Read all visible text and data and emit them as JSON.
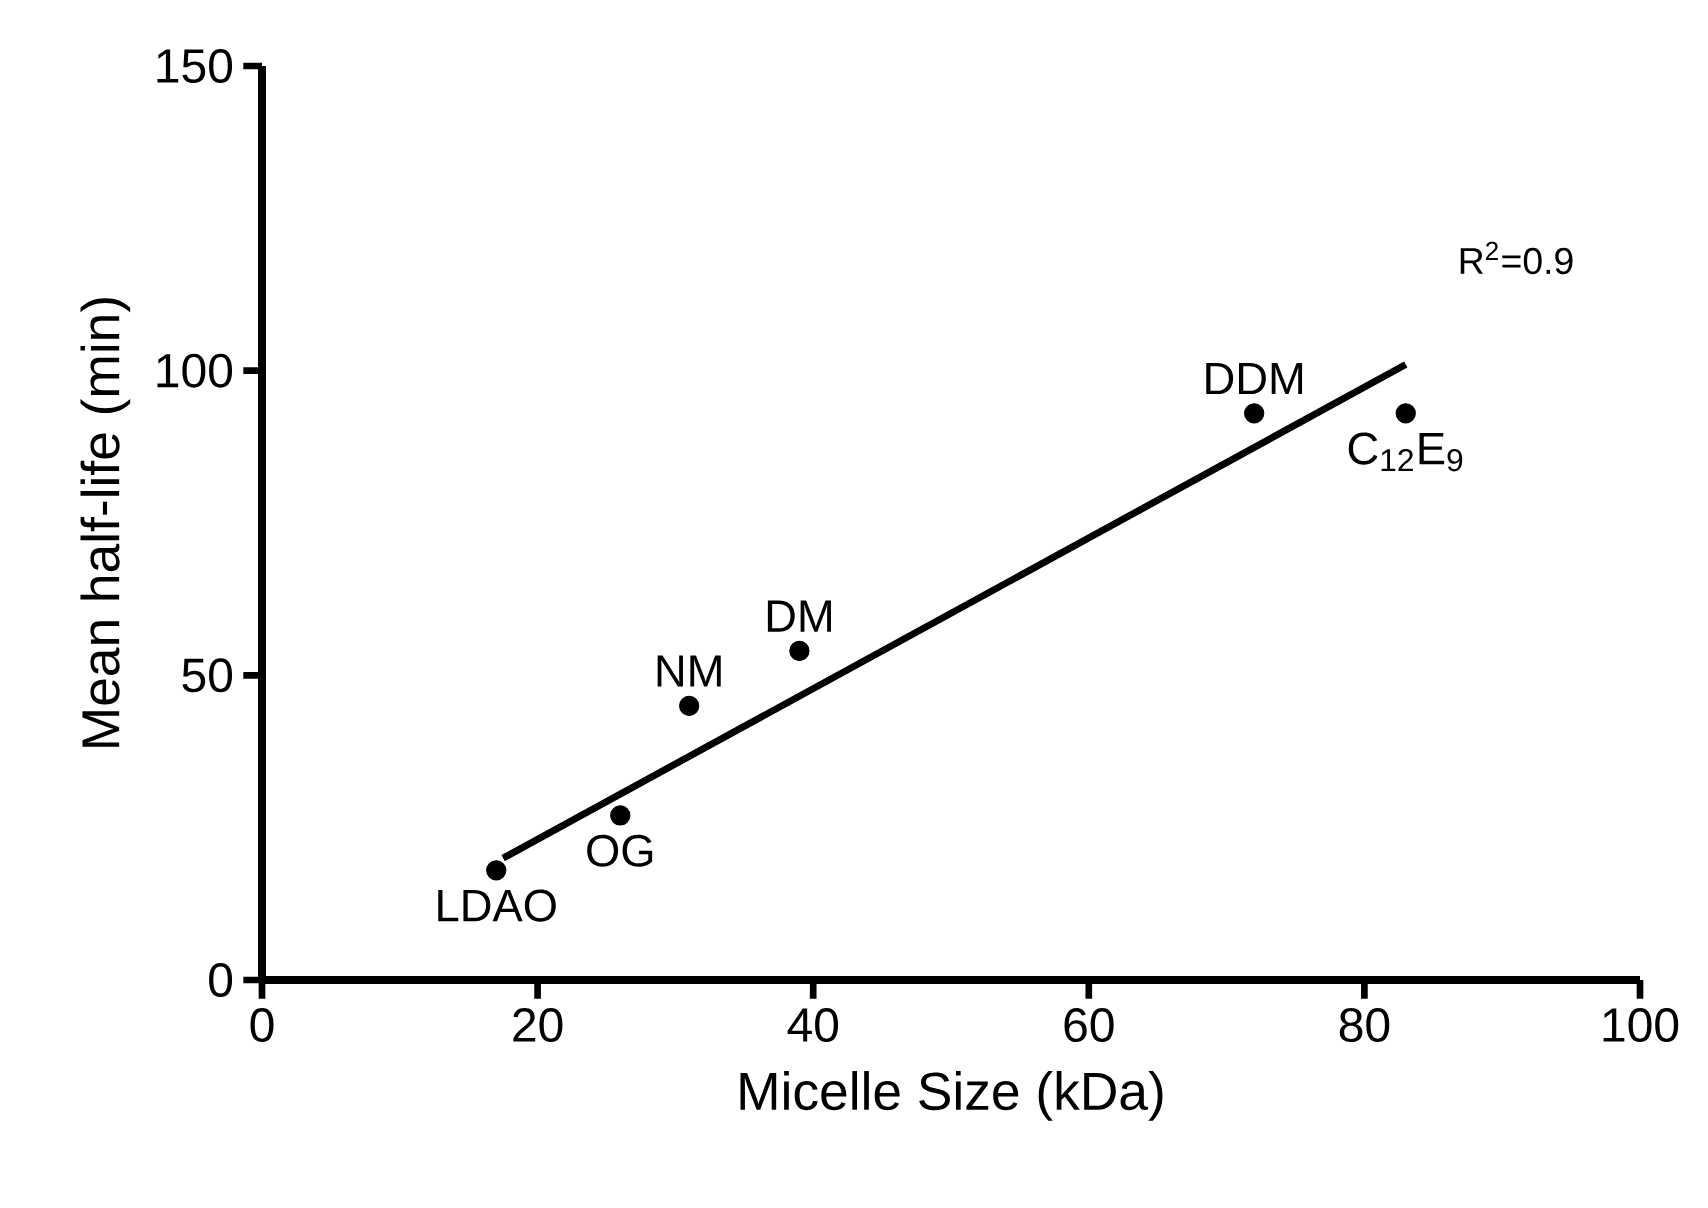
{
  "chart_data": {
    "type": "scatter",
    "xlabel": "Micelle Size (kDa)",
    "ylabel": "Mean half-life (min)",
    "xlim": [
      0,
      100
    ],
    "ylim": [
      0,
      150
    ],
    "xticks": [
      0,
      20,
      40,
      60,
      80,
      100
    ],
    "yticks": [
      0,
      50,
      100,
      150
    ],
    "marker": "circle",
    "series": [
      {
        "color": "#000000",
        "x": [
          17,
          26,
          31,
          39,
          72,
          83
        ],
        "values": [
          18,
          27,
          45,
          54,
          93,
          93
        ]
      },
      {
        "type": "line",
        "color": "#000000",
        "marker": "none",
        "x": [
          17.5,
          83
        ],
        "values": [
          20,
          101
        ]
      }
    ],
    "annotations": [
      {
        "text": "LDAO",
        "x": 17,
        "y": 18
      },
      {
        "text": "OG",
        "x": 26,
        "y": 27
      },
      {
        "text": "NM",
        "x": 31,
        "y": 45
      },
      {
        "text": "DM",
        "x": 39,
        "y": 54
      },
      {
        "text": "DDM",
        "x": 72,
        "y": 93
      },
      {
        "text": "C$_{12}$E$_{9}$",
        "x": 83,
        "y": 93
      },
      "R$^{2}$=0.9"
    ]
  }
}
